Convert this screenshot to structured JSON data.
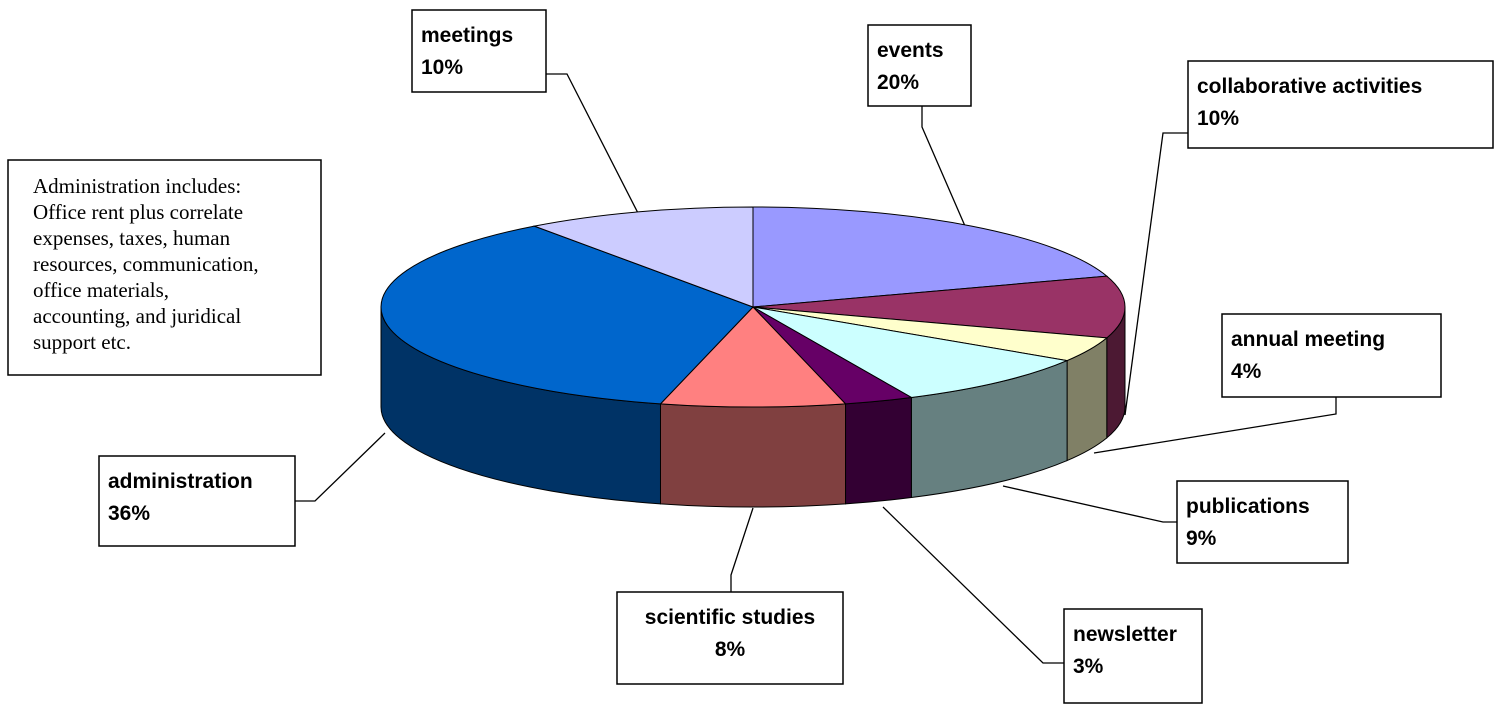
{
  "chart_data": {
    "type": "pie",
    "title": "",
    "slices": [
      {
        "label": "events",
        "value": 20,
        "value_label": "20%",
        "color": "#9999FF",
        "side_color": "#6666AA"
      },
      {
        "label": "collaborative activities",
        "value": 10,
        "value_label": "10%",
        "color": "#993366",
        "side_color": "#4C1933"
      },
      {
        "label": "annual meeting",
        "value": 4,
        "value_label": "4%",
        "color": "#FFFFCC",
        "side_color": "#808066"
      },
      {
        "label": "publications",
        "value": 9,
        "value_label": "9%",
        "color": "#CCFFFF",
        "side_color": "#668080"
      },
      {
        "label": "newsletter",
        "value": 3,
        "value_label": "3%",
        "color": "#660066",
        "side_color": "#330033"
      },
      {
        "label": "scientific studies",
        "value": 8,
        "value_label": "8%",
        "color": "#FF8080",
        "side_color": "#804040"
      },
      {
        "label": "administration",
        "value": 36,
        "value_label": "36%",
        "color": "#0066CC",
        "side_color": "#003366"
      },
      {
        "label": "meetings",
        "value": 10,
        "value_label": "10%",
        "color": "#CCCCFF",
        "side_color": "#666680"
      }
    ],
    "note_lines": [
      "Administration includes:",
      "Office rent plus correlate",
      "expenses, taxes, human",
      "resources, communication,",
      "office materials,",
      "accounting, and juridical",
      "support etc."
    ]
  }
}
